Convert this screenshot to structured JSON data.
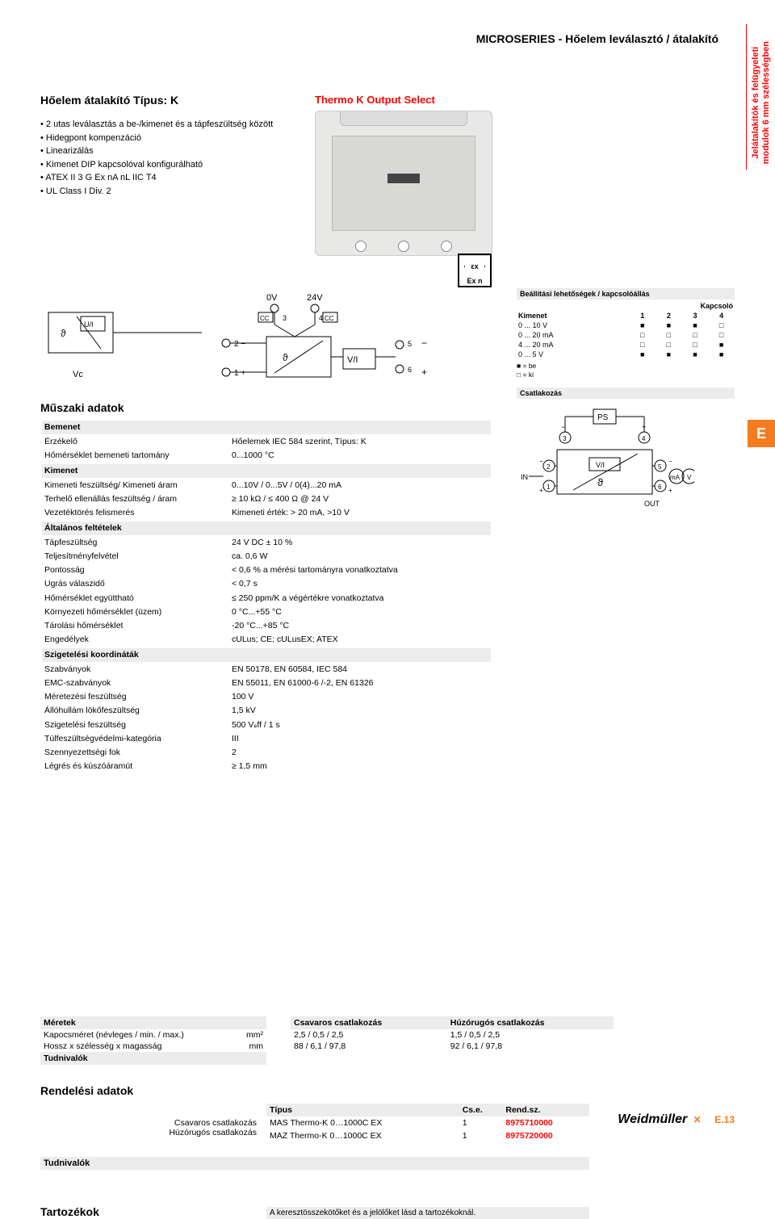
{
  "category_title": "MICROSERIES - Hőelem leválasztó / átalakító",
  "side_tab_line1": "Jelátalakítók és felügyeleti",
  "side_tab_line2": "modulok 6 mm szélességben",
  "product_title": "Hőelem átalakító Típus: K",
  "bullets": [
    "2 utas leválasztás a be-/kimenet és a tápfeszültség között",
    "Hidegpont kompenzáció",
    "Linearizálás",
    "Kimenet DIP kapcsolóval konfigurálható",
    "ATEX II 3 G Ex nA nL IIC T4",
    "UL Class I Div. 2"
  ],
  "thermo_label": "Thermo K Output Select",
  "ex_label": "Ex n",
  "settings_header": "Beállítási lehetőségek / kapcsolóállás",
  "switch_header": "Kapcsoló",
  "switch_col_kimenet": "Kimenet",
  "switch_cols": [
    "1",
    "2",
    "3",
    "4"
  ],
  "switch_rows": [
    {
      "label": "0 ... 10 V",
      "v": [
        "■",
        "■",
        "■",
        "□"
      ]
    },
    {
      "label": "0 ... 20 mA",
      "v": [
        "□",
        "□",
        "□",
        "□"
      ]
    },
    {
      "label": "4 ... 20 mA",
      "v": [
        "□",
        "□",
        "□",
        "■"
      ]
    },
    {
      "label": "0 ... 5 V",
      "v": [
        "■",
        "■",
        "■",
        "■"
      ]
    }
  ],
  "legend_be": "■ = be",
  "legend_ki": "□ = ki",
  "csatlakozas": "Csatlakozás",
  "e_tab": "E",
  "spec_title": "Műszaki adatok",
  "spec_groups": [
    {
      "head": "Bemenet",
      "rows": [
        {
          "k": "Érzékelő",
          "v": "Hőelemek IEC 584 szerint, Típus: K"
        },
        {
          "k": "Hőmérséklet bemeneti tartomány",
          "v": "0...1000 °C"
        }
      ]
    },
    {
      "head": "Kimenet",
      "rows": [
        {
          "k": "Kimeneti feszültség/ Kimeneti áram",
          "v": "0...10V / 0...5V / 0(4)...20 mA"
        },
        {
          "k": "Terhelő ellenállás feszültség / áram",
          "v": "≥ 10 kΩ / ≤ 400 Ω @ 24 V"
        },
        {
          "k": "Vezetéktörés felismerés",
          "v": "Kimeneti érték: > 20 mA, >10 V"
        }
      ]
    },
    {
      "head": "Általános feltételek",
      "rows": [
        {
          "k": "Tápfeszültség",
          "v": "24 V DC ± 10 %"
        },
        {
          "k": "Teljesítményfelvétel",
          "v": "ca. 0,6 W"
        },
        {
          "k": "Pontosság",
          "v": "< 0,6 % a mérési tartományra vonatkoztatva"
        },
        {
          "k": "Ugrás válaszidő",
          "v": "< 0,7 s"
        },
        {
          "k": "Hőmérséklet együttható",
          "v": "≤ 250 ppm/K a végértékre vonatkoztatva"
        },
        {
          "k": "Környezeti hőmérséklet (üzem)",
          "v": "0 °C...+55 °C"
        },
        {
          "k": "Tárolási hőmérséklet",
          "v": "-20 °C...+85 °C"
        },
        {
          "k": "Engedélyek",
          "v": "cULus; CE; cULusEX; ATEX"
        }
      ]
    },
    {
      "head": "Szigetelési koordináták",
      "rows": [
        {
          "k": "Szabványok",
          "v": "EN 50178, EN 60584, IEC 584"
        },
        {
          "k": "EMC-szabványok",
          "v": "EN 55011, EN 61000-6 /-2, EN 61326"
        },
        {
          "k": "Méretezési feszültség",
          "v": "100 V"
        },
        {
          "k": "Állóhullám lökőfeszültség",
          "v": "1,5 kV"
        },
        {
          "k": "Szigetelési feszültség",
          "v": "500 Vₑff / 1 s"
        },
        {
          "k": "Túlfeszültségvédelmi-kategória",
          "v": "III"
        },
        {
          "k": "Szennyezettségi fok",
          "v": "2"
        },
        {
          "k": "Légrés és kúszóáramút",
          "v": "≥ 1,5 mm"
        }
      ]
    }
  ],
  "dims": {
    "header": "Méretek",
    "rows": [
      {
        "k": "Kapocsméret (névleges / min. / max.)",
        "u": "mm²"
      },
      {
        "k": "Hossz x szélesség x magasság",
        "u": "mm"
      }
    ],
    "tudnivalok": "Tudnivalók",
    "cols": [
      "Csavaros csatlakozás",
      "Húzórugós csatlakozás"
    ],
    "vals": [
      [
        "2,5 / 0,5 / 2,5",
        "1,5 / 0,5 / 2,5"
      ],
      [
        "88 / 6,1 / 97,8",
        "92 / 6,1 / 97,8"
      ]
    ]
  },
  "order": {
    "title": "Rendelési adatok",
    "left_rows": [
      "Csavaros csatlakozás",
      "Húzórugós csatlakozás"
    ],
    "headers": [
      "Típus",
      "Cs.e.",
      "Rend.sz."
    ],
    "rows": [
      [
        "MAS Thermo-K 0…1000C EX",
        "1",
        "8975710000"
      ],
      [
        "MAZ Thermo-K 0…1000C EX",
        "1",
        "8975720000"
      ]
    ]
  },
  "notes_label": "Tudnivalók",
  "acc_title": "Tartozékok",
  "acc_note": "A keresztösszekötőket és a jelölőket lásd a tartozékoknál.",
  "footer_brand": "Weidmüller",
  "footer_page": "E.13",
  "wiring_ps": "PS",
  "wiring_in": "IN",
  "wiring_out": "OUT",
  "wiring_theta": "ϑ",
  "wiring_vi": "V/I",
  "wiring_ma": "mA",
  "wiring_v": "V"
}
